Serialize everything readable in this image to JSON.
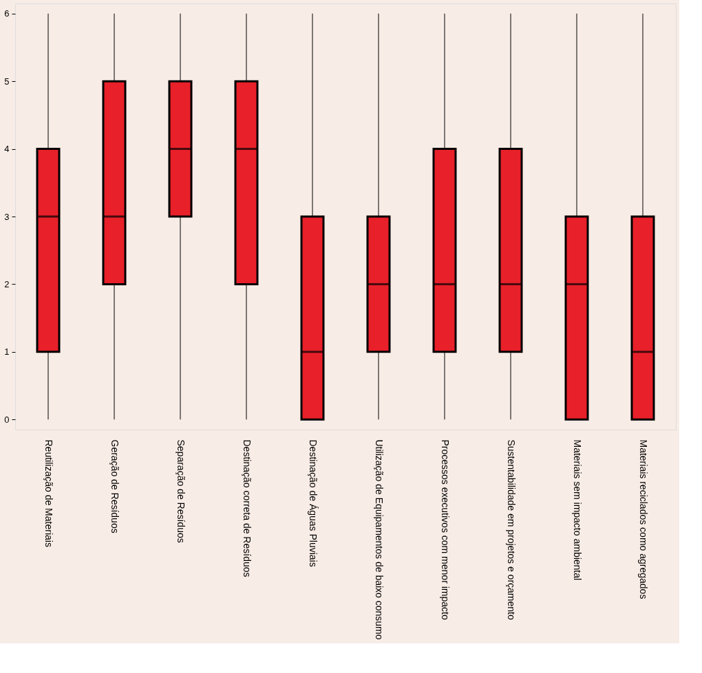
{
  "chart_data": {
    "type": "box",
    "categories": [
      "Reutilização de Materiais",
      "Geração de Resíduos",
      "Separação de Resíduos",
      "Destinação correta de Resíduos",
      "Destinação de Águas Pluviais",
      "Utilização de Equipamentos de baixo consumo",
      "Processos executivos com menor impacto",
      "Sustentabilidade em projetos e orçamento",
      "Materiais sem impacto ambiental",
      "Materiais reciclados como agregados"
    ],
    "series": [
      {
        "color": "#e8202a",
        "boxes": [
          {
            "low": 0,
            "q1": 1,
            "median": 3,
            "q3": 4,
            "high": 6
          },
          {
            "low": 0,
            "q1": 2,
            "median": 3,
            "q3": 5,
            "high": 6
          },
          {
            "low": 0,
            "q1": 3,
            "median": 4,
            "q3": 5,
            "high": 6
          },
          {
            "low": 0,
            "q1": 2,
            "median": 4,
            "q3": 5,
            "high": 6
          },
          {
            "low": 0,
            "q1": 0,
            "median": 1,
            "q3": 3,
            "high": 6
          },
          {
            "low": 0,
            "q1": 1,
            "median": 2,
            "q3": 3,
            "high": 6
          },
          {
            "low": 0,
            "q1": 1,
            "median": 2,
            "q3": 4,
            "high": 6
          },
          {
            "low": 0,
            "q1": 1,
            "median": 2,
            "q3": 4,
            "high": 6
          },
          {
            "low": 0,
            "q1": 0,
            "median": 2,
            "q3": 3,
            "high": 6
          },
          {
            "low": 0,
            "q1": 0,
            "median": 1,
            "q3": 3,
            "high": 6
          }
        ]
      }
    ],
    "ylim": [
      -0.15,
      6.15
    ],
    "yticks": [
      0,
      1,
      2,
      3,
      4,
      5,
      6
    ],
    "grid": false
  }
}
